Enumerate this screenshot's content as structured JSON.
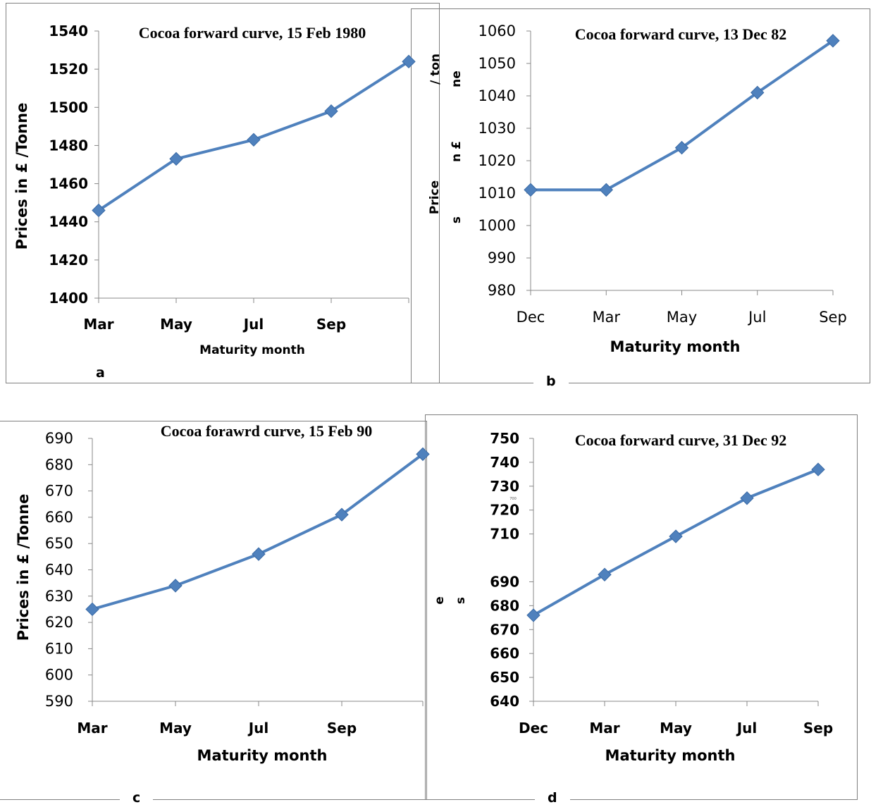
{
  "panels": [
    "a",
    "b",
    "c",
    "d"
  ],
  "overlay_fragments": {
    "b_top": "/ ton",
    "b_mid": "ne",
    "b_low1": "n £",
    "b_low2": "Price",
    "b_low3": "s",
    "d_e": "e",
    "d_s": "s",
    "d_tiny": "700"
  },
  "chart_data": [
    {
      "type": "line",
      "title": "Cocoa forward curve, 15 Feb 1980",
      "xlabel": "Maturity month",
      "ylabel": "Prices in £ /Tonne",
      "categories": [
        "Mar",
        "May",
        "Jul",
        "Sep",
        ""
      ],
      "series": [
        {
          "values": [
            1446,
            1473,
            1483,
            1498,
            1524
          ]
        }
      ],
      "ylim": [
        1400,
        1540
      ],
      "yticks": [
        1400,
        1420,
        1440,
        1460,
        1480,
        1500,
        1520,
        1540
      ],
      "color": "#4f81bd",
      "marker": "diamond",
      "grid": false,
      "legend": "none"
    },
    {
      "type": "line",
      "title": "Cocoa forward curve, 13 Dec 82",
      "xlabel": "Maturity month",
      "ylabel": "",
      "categories": [
        "Dec",
        "Mar",
        "May",
        "Jul",
        "Sep"
      ],
      "series": [
        {
          "values": [
            1011,
            1011,
            1024,
            1041,
            1057
          ]
        }
      ],
      "ylim": [
        980,
        1060
      ],
      "yticks": [
        980,
        990,
        1000,
        1010,
        1020,
        1030,
        1040,
        1050,
        1060
      ],
      "color": "#4f81bd",
      "marker": "diamond",
      "grid": false,
      "legend": "none"
    },
    {
      "type": "line",
      "title": "Cocoa forawrd curve, 15 Feb 90",
      "xlabel": "Maturity month",
      "ylabel": "Prices in £ /Tonne",
      "categories": [
        "Mar",
        "May",
        "Jul",
        "Sep",
        ""
      ],
      "series": [
        {
          "values": [
            625,
            634,
            646,
            661,
            684
          ]
        }
      ],
      "ylim": [
        590,
        690
      ],
      "yticks": [
        590,
        600,
        610,
        620,
        630,
        640,
        650,
        660,
        670,
        680,
        690
      ],
      "color": "#4f81bd",
      "marker": "diamond",
      "grid": false,
      "legend": "none"
    },
    {
      "type": "line",
      "title": "Cocoa forward curve, 31 Dec 92",
      "xlabel": "Maturity month",
      "ylabel": "",
      "categories": [
        "Dec",
        "Mar",
        "May",
        "Jul",
        "Sep"
      ],
      "series": [
        {
          "values": [
            676,
            693,
            709,
            725,
            737
          ]
        }
      ],
      "ylim": [
        640,
        750
      ],
      "yticks": [
        640,
        650,
        660,
        670,
        680,
        690,
        710,
        720,
        730,
        740,
        750
      ],
      "color": "#4f81bd",
      "marker": "diamond",
      "grid": false,
      "legend": "none"
    }
  ]
}
